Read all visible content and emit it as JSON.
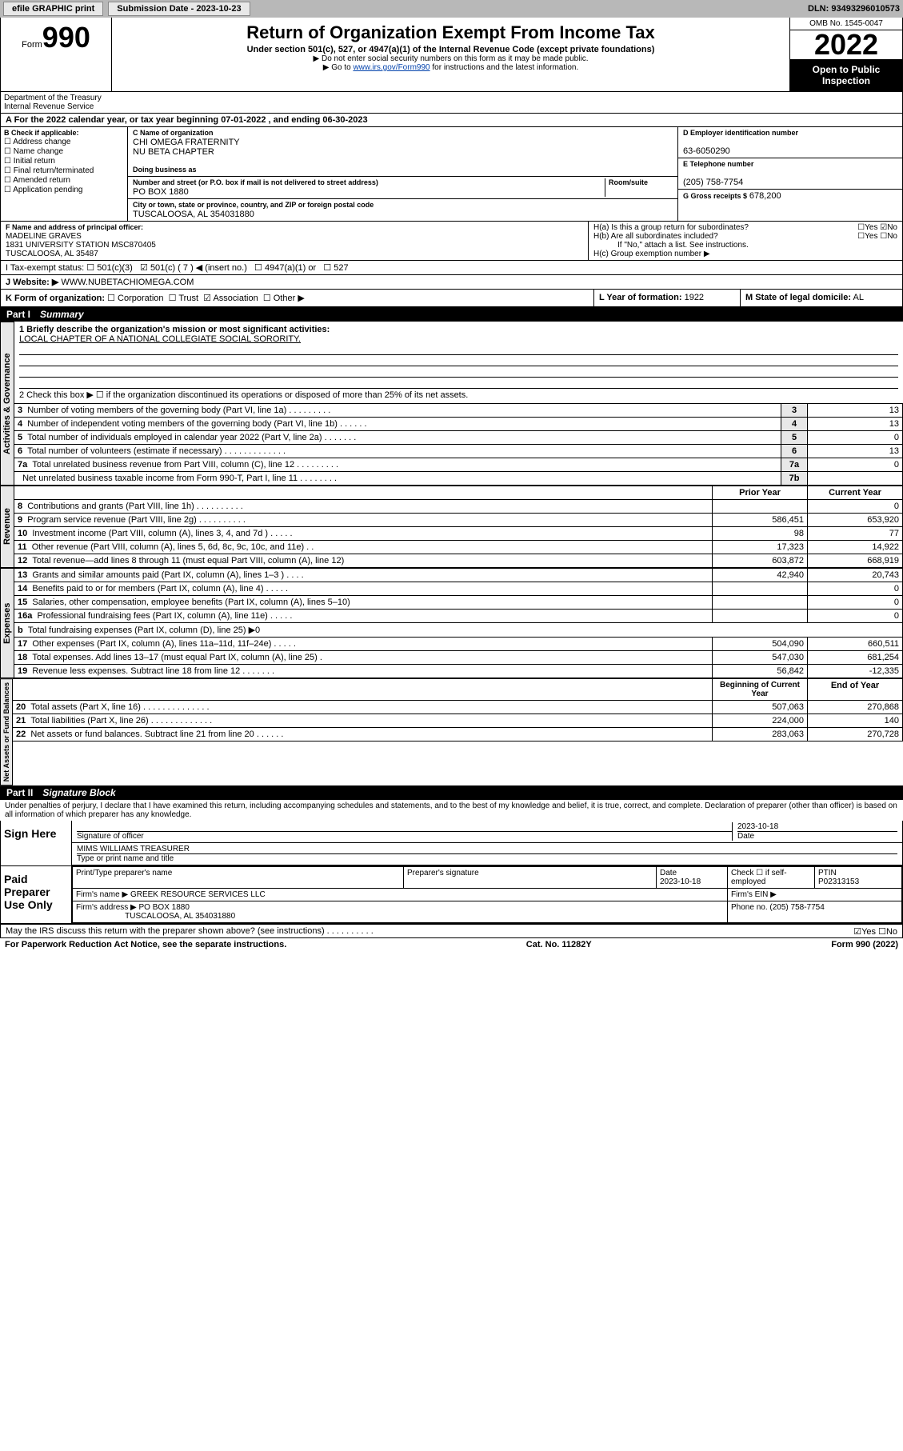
{
  "topbar": {
    "efile": "efile GRAPHIC print",
    "submission": "Submission Date - 2023-10-23",
    "dln": "DLN: 93493296010573"
  },
  "header": {
    "form_prefix": "Form",
    "form_num": "990",
    "title": "Return of Organization Exempt From Income Tax",
    "subtitle": "Under section 501(c), 527, or 4947(a)(1) of the Internal Revenue Code (except private foundations)",
    "note1": "▶ Do not enter social security numbers on this form as it may be made public.",
    "note2_pre": "▶ Go to ",
    "note2_link": "www.irs.gov/Form990",
    "note2_post": " for instructions and the latest information.",
    "omb": "OMB No. 1545-0047",
    "year": "2022",
    "inspection": "Open to Public Inspection",
    "dept": "Department of the Treasury",
    "irs": "Internal Revenue Service"
  },
  "row_a": "A For the 2022 calendar year, or tax year beginning 07-01-2022    , and ending 06-30-2023",
  "col_b": {
    "hdr": "B Check if applicable:",
    "opts": [
      "Address change",
      "Name change",
      "Initial return",
      "Final return/terminated",
      "Amended return",
      "Application pending"
    ]
  },
  "c": {
    "lbl": "C Name of organization",
    "name1": "CHI OMEGA FRATERNITY",
    "name2": "NU BETA CHAPTER",
    "dba_lbl": "Doing business as",
    "addr_lbl": "Number and street (or P.O. box if mail is not delivered to street address)",
    "room_lbl": "Room/suite",
    "addr": "PO BOX 1880",
    "city_lbl": "City or town, state or province, country, and ZIP or foreign postal code",
    "city": "TUSCALOOSA, AL  354031880"
  },
  "d": {
    "lbl": "D Employer identification number",
    "val": "63-6050290"
  },
  "e": {
    "lbl": "E Telephone number",
    "val": "(205) 758-7754"
  },
  "g": {
    "lbl": "G Gross receipts $",
    "val": "678,200"
  },
  "f": {
    "lbl": "F Name and address of principal officer:",
    "name": "MADELINE GRAVES",
    "addr1": "1831 UNIVERSITY STATION MSC870405",
    "addr2": "TUSCALOOSA, AL  35487"
  },
  "h": {
    "a": "H(a)  Is this a group return for subordinates?",
    "b": "H(b)  Are all subordinates included?",
    "b_note": "If \"No,\" attach a list. See instructions.",
    "c": "H(c)  Group exemption number ▶",
    "yes": "Yes",
    "no": "No"
  },
  "i": {
    "lbl": "I   Tax-exempt status:",
    "opts": [
      "501(c)(3)",
      "501(c) ( 7 ) ◀ (insert no.)",
      "4947(a)(1) or",
      "527"
    ]
  },
  "j": {
    "lbl": "J   Website: ▶",
    "val": "WWW.NUBETACHIOMEGA.COM"
  },
  "k": {
    "lbl": "K Form of organization:",
    "opts": [
      "Corporation",
      "Trust",
      "Association",
      "Other ▶"
    ]
  },
  "l": {
    "lbl": "L Year of formation:",
    "val": "1922"
  },
  "m": {
    "lbl": "M State of legal domicile:",
    "val": "AL"
  },
  "part1": {
    "hdr": "Part I",
    "title": "Summary"
  },
  "summary": {
    "q1": "1   Briefly describe the organization's mission or most significant activities:",
    "q1_val": "LOCAL CHAPTER OF A NATIONAL COLLEGIATE SOCIAL SORORITY.",
    "q2": "2   Check this box ▶ ☐  if the organization discontinued its operations or disposed of more than 25% of its net assets.",
    "rows_gov": [
      {
        "n": "3",
        "t": "Number of voting members of the governing body (Part VI, line 1a)   .    .    .    .    .    .    .    .    .",
        "ln": "3",
        "v": "13"
      },
      {
        "n": "4",
        "t": "Number of independent voting members of the governing body (Part VI, line 1b)   .    .    .    .    .    .",
        "ln": "4",
        "v": "13"
      },
      {
        "n": "5",
        "t": "Total number of individuals employed in calendar year 2022 (Part V, line 2a)   .    .    .    .    .    .    .",
        "ln": "5",
        "v": "0"
      },
      {
        "n": "6",
        "t": "Total number of volunteers (estimate if necessary)   .    .    .    .    .    .    .    .    .    .    .    .    .",
        "ln": "6",
        "v": "13"
      },
      {
        "n": "7a",
        "t": "Total unrelated business revenue from Part VIII, column (C), line 12   .    .    .    .    .    .    .    .    .",
        "ln": "7a",
        "v": "0"
      },
      {
        "n": "",
        "t": "Net unrelated business taxable income from Form 990-T, Part I, line 11   .    .    .    .    .    .    .    .",
        "ln": "7b",
        "v": ""
      }
    ],
    "col_hdr_prior": "Prior Year",
    "col_hdr_curr": "Current Year",
    "rows_rev": [
      {
        "n": "8",
        "t": "Contributions and grants (Part VIII, line 1h)   .    .    .    .    .    .    .    .    .    .",
        "p": "",
        "c": "0"
      },
      {
        "n": "9",
        "t": "Program service revenue (Part VIII, line 2g)  .    .    .    .    .    .    .    .    .    .",
        "p": "586,451",
        "c": "653,920"
      },
      {
        "n": "10",
        "t": "Investment income (Part VIII, column (A), lines 3, 4, and 7d )   .    .    .    .    .",
        "p": "98",
        "c": "77"
      },
      {
        "n": "11",
        "t": "Other revenue (Part VIII, column (A), lines 5, 6d, 8c, 9c, 10c, and 11e)    .    .",
        "p": "17,323",
        "c": "14,922"
      },
      {
        "n": "12",
        "t": "Total revenue—add lines 8 through 11 (must equal Part VIII, column (A), line 12)",
        "p": "603,872",
        "c": "668,919"
      }
    ],
    "rows_exp": [
      {
        "n": "13",
        "t": "Grants and similar amounts paid (Part IX, column (A), lines 1–3 )   .    .    .    .",
        "p": "42,940",
        "c": "20,743"
      },
      {
        "n": "14",
        "t": "Benefits paid to or for members (Part IX, column (A), line 4)   .    .    .    .    .",
        "p": "",
        "c": "0"
      },
      {
        "n": "15",
        "t": "Salaries, other compensation, employee benefits (Part IX, column (A), lines 5–10)",
        "p": "",
        "c": "0"
      },
      {
        "n": "16a",
        "t": "Professional fundraising fees (Part IX, column (A), line 11e)   .    .    .    .    .",
        "p": "",
        "c": "0"
      },
      {
        "n": "b",
        "t": "Total fundraising expenses (Part IX, column (D), line 25) ▶0",
        "p": null,
        "c": null
      },
      {
        "n": "17",
        "t": "Other expenses (Part IX, column (A), lines 11a–11d, 11f–24e)   .    .    .    .    .",
        "p": "504,090",
        "c": "660,511"
      },
      {
        "n": "18",
        "t": "Total expenses. Add lines 13–17 (must equal Part IX, column (A), line 25)    .",
        "p": "547,030",
        "c": "681,254"
      },
      {
        "n": "19",
        "t": "Revenue less expenses. Subtract line 18 from line 12  .    .    .    .    .    .    .",
        "p": "56,842",
        "c": "-12,335"
      }
    ],
    "col_hdr_beg": "Beginning of Current Year",
    "col_hdr_end": "End of Year",
    "rows_net": [
      {
        "n": "20",
        "t": "Total assets (Part X, line 16)  .    .    .    .    .    .    .    .    .    .    .    .    .    .",
        "p": "507,063",
        "c": "270,868"
      },
      {
        "n": "21",
        "t": "Total liabilities (Part X, line 26)   .    .    .    .    .    .    .    .    .    .    .    .    .",
        "p": "224,000",
        "c": "140"
      },
      {
        "n": "22",
        "t": "Net assets or fund balances. Subtract line 21 from line 20   .    .    .    .    .    .",
        "p": "283,063",
        "c": "270,728"
      }
    ],
    "vert_gov": "Activities & Governance",
    "vert_rev": "Revenue",
    "vert_exp": "Expenses",
    "vert_net": "Net Assets or Fund Balances"
  },
  "part2": {
    "hdr": "Part II",
    "title": "Signature Block"
  },
  "sig": {
    "decl": "Under penalties of perjury, I declare that I have examined this return, including accompanying schedules and statements, and to the best of my knowledge and belief, it is true, correct, and complete. Declaration of preparer (other than officer) is based on all information of which preparer has any knowledge.",
    "sign_here": "Sign Here",
    "sig_officer": "Signature of officer",
    "date": "Date",
    "date_val": "2023-10-18",
    "name_title": "MIMS WILLIAMS TREASURER",
    "name_lbl": "Type or print name and title",
    "paid": "Paid Preparer Use Only",
    "prep_name_lbl": "Print/Type preparer's name",
    "prep_sig_lbl": "Preparer's signature",
    "prep_date": "2023-10-18",
    "check_lbl": "Check ☐ if self-employed",
    "ptin_lbl": "PTIN",
    "ptin": "P02313153",
    "firm_name_lbl": "Firm's name   ▶",
    "firm_name": "GREEK RESOURCE SERVICES LLC",
    "firm_ein_lbl": "Firm's EIN ▶",
    "firm_addr_lbl": "Firm's address ▶",
    "firm_addr1": "PO BOX 1880",
    "firm_addr2": "TUSCALOOSA, AL  354031880",
    "phone_lbl": "Phone no.",
    "phone": "(205) 758-7754",
    "discuss": "May the IRS discuss this return with the preparer shown above? (see instructions)   .    .    .    .    .    .    .    .    .    .",
    "discuss_yes": "Yes",
    "discuss_no": "No"
  },
  "footer": {
    "left": "For Paperwork Reduction Act Notice, see the separate instructions.",
    "mid": "Cat. No. 11282Y",
    "right": "Form 990 (2022)"
  }
}
